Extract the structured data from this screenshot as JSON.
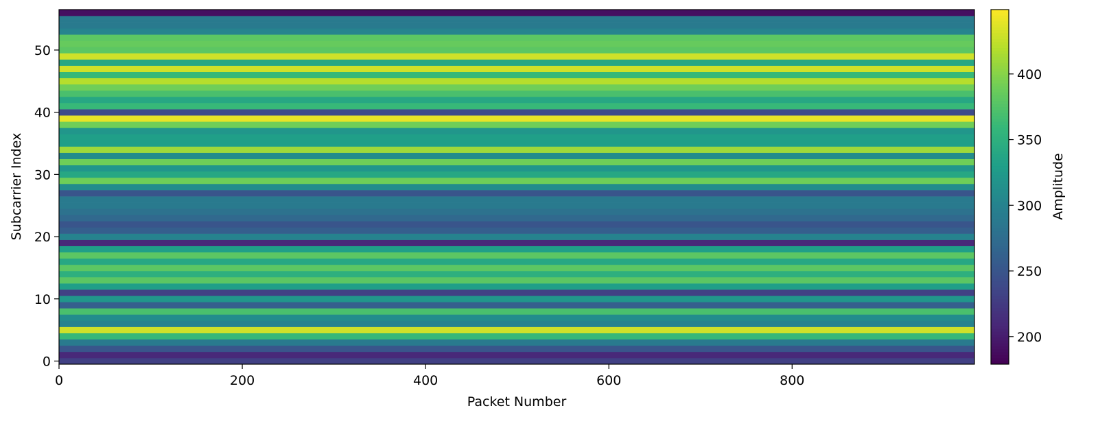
{
  "chart_data": {
    "type": "heatmap",
    "xlabel": "Packet Number",
    "ylabel": "Subcarrier Index",
    "colorbar_label": "Amplitude",
    "colormap": "viridis",
    "xlim": [
      0,
      999
    ],
    "xticks": [
      0,
      200,
      400,
      600,
      800
    ],
    "ylim": [
      -0.5,
      56.5
    ],
    "yticks": [
      0,
      10,
      20,
      30,
      40,
      50
    ],
    "clim": [
      179,
      449
    ],
    "cticks": [
      200,
      250,
      300,
      350,
      400
    ],
    "y": [
      0,
      1,
      2,
      3,
      4,
      5,
      6,
      7,
      8,
      9,
      10,
      11,
      12,
      13,
      14,
      15,
      16,
      17,
      18,
      19,
      20,
      21,
      22,
      23,
      24,
      25,
      26,
      27,
      28,
      29,
      30,
      31,
      32,
      33,
      34,
      35,
      36,
      37,
      38,
      39,
      40,
      41,
      42,
      43,
      44,
      45,
      46,
      47,
      48,
      49,
      50,
      51,
      52,
      53,
      54,
      55,
      56
    ],
    "values": [
      230,
      210,
      250,
      290,
      360,
      430,
      300,
      310,
      370,
      260,
      320,
      230,
      330,
      380,
      350,
      380,
      340,
      380,
      330,
      210,
      300,
      260,
      250,
      270,
      280,
      290,
      290,
      250,
      310,
      390,
      340,
      320,
      390,
      310,
      410,
      330,
      330,
      320,
      390,
      440,
      240,
      360,
      340,
      370,
      390,
      420,
      360,
      430,
      340,
      430,
      380,
      385,
      380,
      300,
      290,
      290,
      190
    ]
  }
}
